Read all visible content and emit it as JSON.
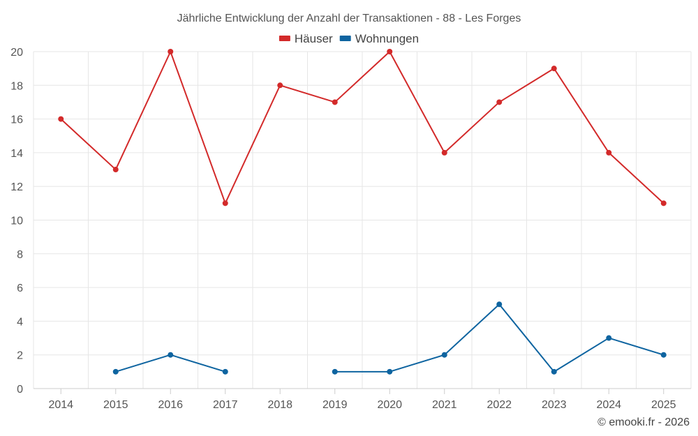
{
  "chart_data": {
    "type": "line",
    "title": "Jährliche Entwicklung der Anzahl der Transaktionen - 88 - Les Forges",
    "categories": [
      "2014",
      "2015",
      "2016",
      "2017",
      "2018",
      "2019",
      "2020",
      "2021",
      "2022",
      "2023",
      "2024",
      "2025"
    ],
    "ylim": [
      0,
      20
    ],
    "yticks": [
      0,
      2,
      4,
      6,
      8,
      10,
      12,
      14,
      16,
      18,
      20
    ],
    "xlabel": "",
    "ylabel": "",
    "grid": true,
    "legend_position": "top-center",
    "series": [
      {
        "name": "Häuser",
        "color": "#d32a2a",
        "values": [
          16,
          13,
          20,
          11,
          18,
          17,
          20,
          14,
          17,
          19,
          14,
          11
        ]
      },
      {
        "name": "Wohnungen",
        "color": "#0e64a0",
        "values": [
          null,
          1,
          2,
          1,
          null,
          1,
          1,
          2,
          5,
          1,
          3,
          2
        ]
      }
    ],
    "credit": "© emooki.fr - 2026"
  }
}
